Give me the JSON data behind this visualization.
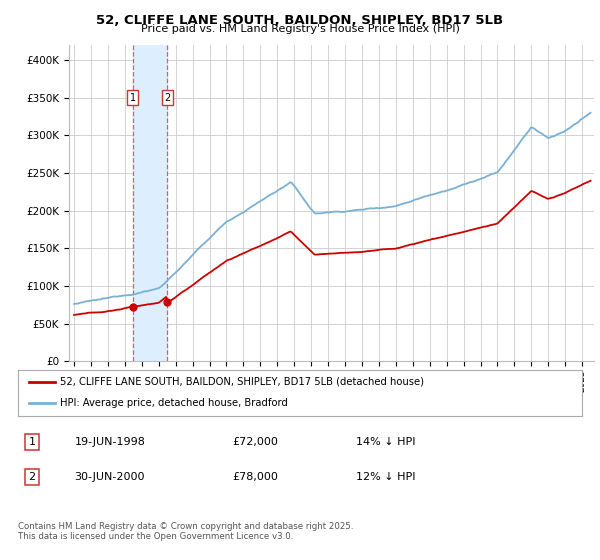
{
  "title": "52, CLIFFE LANE SOUTH, BAILDON, SHIPLEY, BD17 5LB",
  "subtitle": "Price paid vs. HM Land Registry's House Price Index (HPI)",
  "legend_line1": "52, CLIFFE LANE SOUTH, BAILDON, SHIPLEY, BD17 5LB (detached house)",
  "legend_line2": "HPI: Average price, detached house, Bradford",
  "footer": "Contains HM Land Registry data © Crown copyright and database right 2025.\nThis data is licensed under the Open Government Licence v3.0.",
  "purchase1_date": "19-JUN-1998",
  "purchase1_price": "£72,000",
  "purchase1_hpi": "14% ↓ HPI",
  "purchase1_year": 1998.47,
  "purchase2_date": "30-JUN-2000",
  "purchase2_price": "£78,000",
  "purchase2_hpi": "12% ↓ HPI",
  "purchase2_year": 2000.5,
  "price_p1": 72000,
  "price_p2": 78000,
  "red_color": "#cc0000",
  "blue_color": "#7ab0d4",
  "shade_color": "#ddeeff",
  "grid_color": "#cccccc",
  "ylim_max": 420000,
  "xlim_start": 1994.7,
  "xlim_end": 2025.7
}
